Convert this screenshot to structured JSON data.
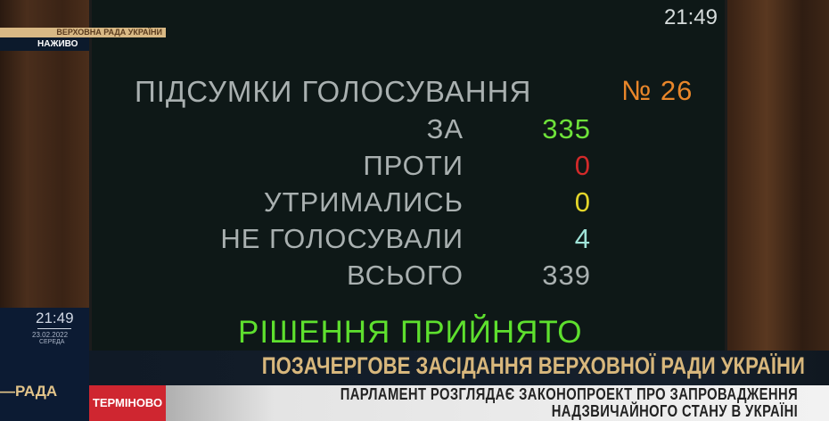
{
  "channel": {
    "name": "ВЕРХОВНА РАДА УКРАЇНИ",
    "live": "НАЖИВО",
    "logo": "РАДА"
  },
  "board": {
    "clock": "21:49",
    "title": "ПІДСУМКИ ГОЛОСУВАННЯ",
    "vote_number": "№ 26",
    "rows": [
      {
        "label": "ЗА",
        "value": "335",
        "color": "#6ee23a"
      },
      {
        "label": "ПРОТИ",
        "value": "0",
        "color": "#d22a2a"
      },
      {
        "label": "УТРИМАЛИСЬ",
        "value": "0",
        "color": "#e3d52a"
      },
      {
        "label": "НЕ ГОЛОСУВАЛИ",
        "value": "4",
        "color": "#9fe3d8"
      },
      {
        "label": "ВСЬОГО",
        "value": "339",
        "color": "#a9b0b0"
      }
    ],
    "result": "РІШЕННЯ ПРИЙНЯТО",
    "result_color": "#5ee02e",
    "number_color": "#e8862a"
  },
  "overlay": {
    "time": "21:49",
    "date": "23.02.2022",
    "weekday": "СЕРЕДА"
  },
  "headline": "ПОЗАЧЕРГОВЕ ЗАСІДАННЯ ВЕРХОВНОЇ РАДИ УКРАЇНИ",
  "ticker": {
    "tag": "ТЕРМІНОВО",
    "line1": "ПАРЛАМЕНТ РОЗГЛЯДАЄ ЗАКОНОПРОЕКТ ПРО ЗАПРОВАДЖЕННЯ",
    "line2": "НАДЗВИЧАЙНОГО СТАНУ В УКРАЇНІ"
  }
}
